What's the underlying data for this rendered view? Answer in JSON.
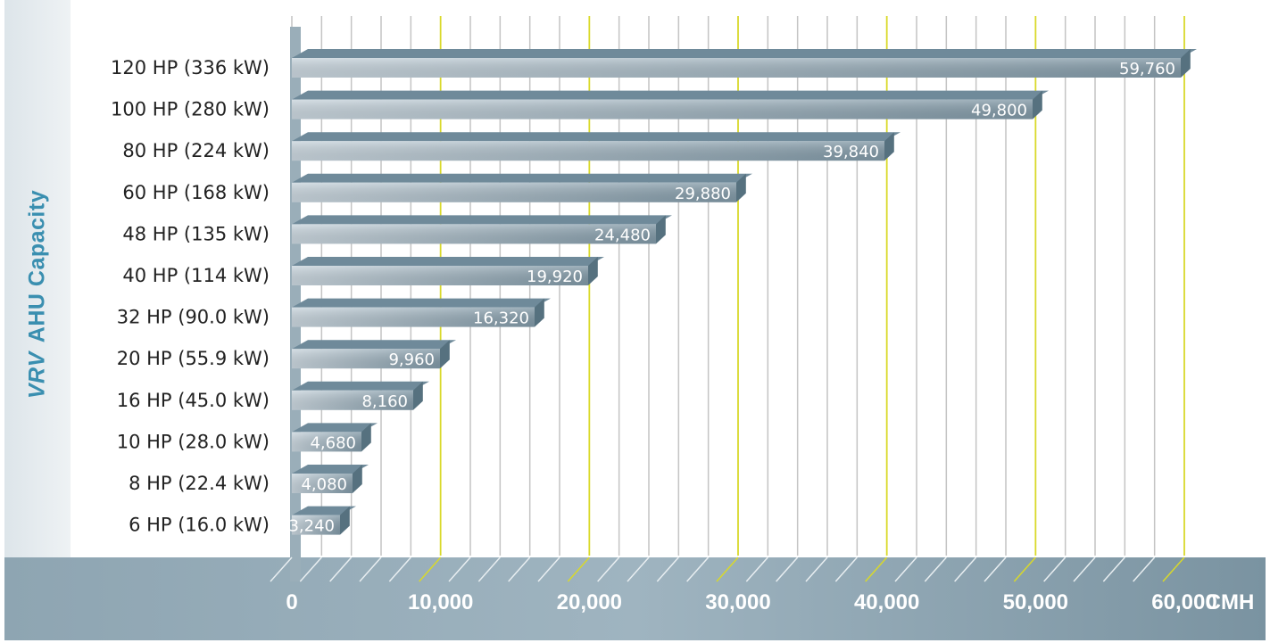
{
  "chart_data": {
    "type": "bar",
    "orientation": "horizontal",
    "ylabel_prefix": "VRV",
    "ylabel_rest": "AHU Capacity",
    "unit": "CMH",
    "xlim": [
      0,
      60000
    ],
    "xticks": [
      0,
      10000,
      20000,
      30000,
      40000,
      50000,
      60000
    ],
    "xtick_labels": [
      "0",
      "10,000",
      "20,000",
      "30,000",
      "40,000",
      "50,000",
      "60,000"
    ],
    "categories": [
      "120 HP (336 kW)",
      "100 HP (280 kW)",
      "80 HP (224 kW)",
      "60 HP (168 kW)",
      "48 HP (135 kW)",
      "40 HP (114 kW)",
      "32 HP (90.0 kW)",
      "20 HP (55.9 kW)",
      "16 HP (45.0 kW)",
      "10 HP (28.0 kW)",
      "8 HP (22.4 kW)",
      "6 HP (16.0 kW)"
    ],
    "values": [
      59760,
      49800,
      39840,
      29880,
      24480,
      19920,
      16320,
      9960,
      8160,
      4680,
      4080,
      3240
    ],
    "value_labels": [
      "59,760",
      "49,800",
      "39,840",
      "29,880",
      "24,480",
      "19,920",
      "16,320",
      "9,960",
      "8,160",
      "4,680",
      "4,080",
      "3,240"
    ],
    "colors": {
      "bar": "#8fa6b4",
      "bar_light": "#c5d2da",
      "bar_top": "#5d7a8b",
      "major_grid": "#d9d92a",
      "minor_grid": "#c4c4c4",
      "axis_band": "#7f98a6",
      "ylabel": "#3a8fb0"
    },
    "grid": true,
    "legend": "none"
  }
}
